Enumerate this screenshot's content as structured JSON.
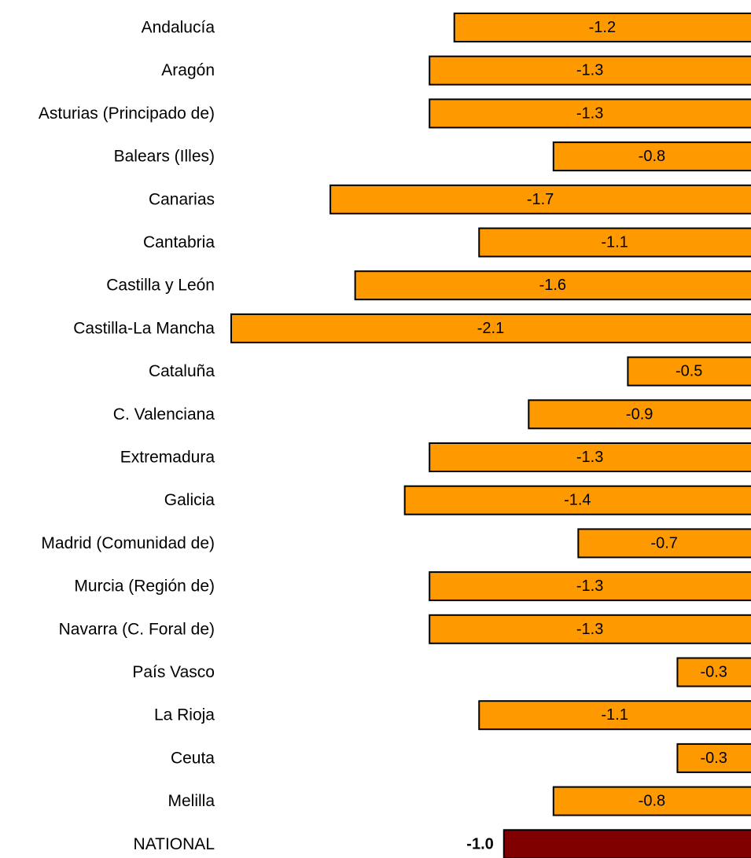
{
  "chart_data": {
    "type": "bar",
    "orientation": "horizontal",
    "categories": [
      "Andalucía",
      "Aragón",
      "Asturias (Principado de)",
      "Balears (Illes)",
      "Canarias",
      "Cantabria",
      "Castilla y León",
      "Castilla-La Mancha",
      "Cataluña",
      "C. Valenciana",
      "Extremadura",
      "Galicia",
      "Madrid (Comunidad de)",
      "Murcia (Región de)",
      "Navarra (C. Foral de)",
      "País Vasco",
      "La Rioja",
      "Ceuta",
      "Melilla",
      "NATIONAL"
    ],
    "values": [
      -1.2,
      -1.3,
      -1.3,
      -0.8,
      -1.7,
      -1.1,
      -1.6,
      -2.1,
      -0.5,
      -0.9,
      -1.3,
      -1.4,
      -0.7,
      -1.3,
      -1.3,
      -0.3,
      -1.1,
      -0.3,
      -0.8,
      -1.0
    ],
    "value_labels": [
      "-1.2",
      "-1.3",
      "-1.3",
      "-0.8",
      "-1.7",
      "-1.1",
      "-1.6",
      "-2.1",
      "-0.5",
      "-0.9",
      "-1.3",
      "-1.4",
      "-0.7",
      "-1.3",
      "-1.3",
      "-0.3",
      "-1.1",
      "-0.3",
      "-0.8",
      "-1.0"
    ],
    "highlight_category": "NATIONAL",
    "xlim": [
      -2.1,
      0
    ],
    "grid": false,
    "legend": "none",
    "title": "",
    "xlabel": "",
    "ylabel": "",
    "colors": {
      "bar": "#FF9900",
      "highlight_bar": "#800000",
      "bar_border": "#000000"
    }
  }
}
